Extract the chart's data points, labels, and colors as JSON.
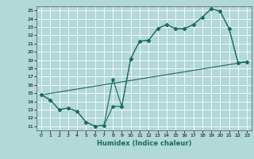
{
  "xlabel": "Humidex (Indice chaleur)",
  "xlim": [
    -0.5,
    23.5
  ],
  "ylim": [
    10.5,
    25.5
  ],
  "yticks": [
    11,
    12,
    13,
    14,
    15,
    16,
    17,
    18,
    19,
    20,
    21,
    22,
    23,
    24,
    25
  ],
  "xticks": [
    0,
    1,
    2,
    3,
    4,
    5,
    6,
    7,
    8,
    9,
    10,
    11,
    12,
    13,
    14,
    15,
    16,
    17,
    18,
    19,
    20,
    21,
    22,
    23
  ],
  "bg_color": "#b2d8d8",
  "line_color": "#1a6b5a",
  "grid_color": "#ffffff",
  "line1_x": [
    0,
    1,
    2,
    3,
    4,
    5,
    6,
    7,
    8,
    9,
    10,
    11,
    12,
    13,
    14,
    15,
    16,
    17,
    18,
    19,
    20,
    21,
    22,
    23
  ],
  "line1_y": [
    14.8,
    14.2,
    13.0,
    13.2,
    12.8,
    11.5,
    11.0,
    11.1,
    16.7,
    13.4,
    19.2,
    21.3,
    21.4,
    22.8,
    23.3,
    22.8,
    22.8,
    23.3,
    24.2,
    25.2,
    24.9,
    22.8,
    18.7,
    18.8
  ],
  "line2_x": [
    0,
    1,
    2,
    3,
    4,
    5,
    6,
    7,
    8,
    9,
    10,
    11,
    12,
    13,
    14,
    15,
    16,
    17,
    18,
    19,
    20,
    21,
    22,
    23
  ],
  "line2_y": [
    14.8,
    14.2,
    13.0,
    13.2,
    12.8,
    11.5,
    11.0,
    11.1,
    13.4,
    13.4,
    19.2,
    21.3,
    21.4,
    22.8,
    23.3,
    22.8,
    22.8,
    23.3,
    24.2,
    25.2,
    24.9,
    22.8,
    18.7,
    18.8
  ],
  "line3_x": [
    0,
    23
  ],
  "line3_y": [
    14.8,
    18.8
  ],
  "marker_size": 2.5
}
